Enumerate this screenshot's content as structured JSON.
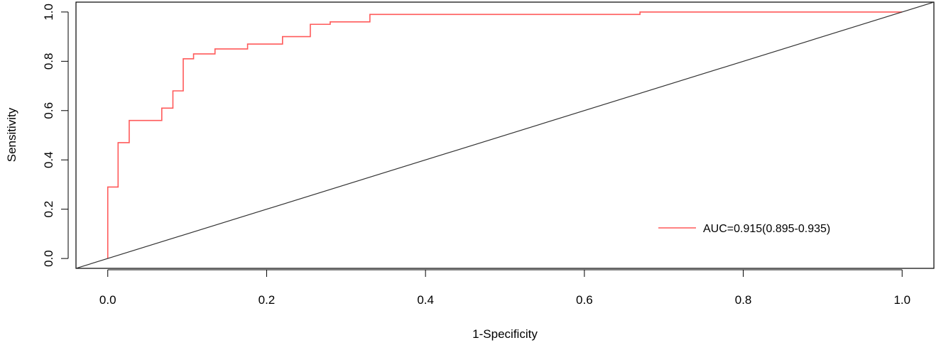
{
  "chart_data": {
    "type": "line",
    "title": "",
    "xlabel": "1-Specificity",
    "ylabel": "Sensitivity",
    "xlim": [
      -0.04,
      1.04
    ],
    "ylim": [
      -0.04,
      1.04
    ],
    "x_ticks": [
      0.0,
      0.2,
      0.4,
      0.6,
      0.8,
      1.0
    ],
    "x_tick_labels": [
      "0.0",
      "0.2",
      "0.4",
      "0.6",
      "0.8",
      "1.0"
    ],
    "y_ticks": [
      0.0,
      0.2,
      0.4,
      0.6,
      0.8,
      1.0
    ],
    "y_tick_labels": [
      "0.0",
      "0.2",
      "0.4",
      "0.6",
      "0.8",
      "1.0"
    ],
    "grid": false,
    "legend_position": "bottom-right",
    "series": [
      {
        "name": "AUC=0.915(0.895-0.935)",
        "color": "#ff5a5a",
        "step": true,
        "x": [
          0.0,
          0.0,
          0.013,
          0.013,
          0.027,
          0.027,
          0.068,
          0.068,
          0.082,
          0.082,
          0.095,
          0.095,
          0.108,
          0.108,
          0.135,
          0.135,
          0.176,
          0.176,
          0.22,
          0.22,
          0.255,
          0.255,
          0.28,
          0.28,
          0.33,
          0.33,
          0.345,
          0.345,
          0.67,
          0.67,
          1.0
        ],
        "y": [
          0.0,
          0.29,
          0.29,
          0.47,
          0.47,
          0.56,
          0.56,
          0.61,
          0.61,
          0.68,
          0.68,
          0.81,
          0.81,
          0.83,
          0.83,
          0.85,
          0.85,
          0.87,
          0.87,
          0.9,
          0.9,
          0.95,
          0.95,
          0.96,
          0.96,
          0.99,
          0.99,
          0.99,
          0.99,
          1.0,
          1.0
        ]
      },
      {
        "name": "",
        "color": "#333333",
        "x": [
          -0.04,
          1.04
        ],
        "y": [
          -0.04,
          1.04
        ]
      }
    ]
  }
}
